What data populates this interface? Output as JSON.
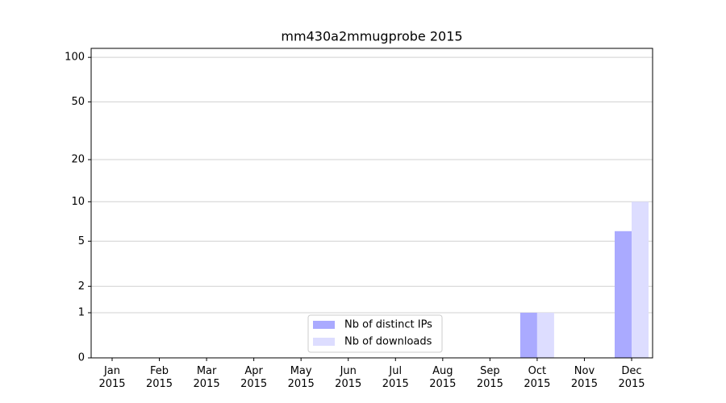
{
  "chart_data": {
    "type": "bar",
    "title": "mm430a2mmugprobe 2015",
    "categories": [
      "Jan 2015",
      "Feb 2015",
      "Mar 2015",
      "Apr 2015",
      "May 2015",
      "Jun 2015",
      "Jul 2015",
      "Aug 2015",
      "Sep 2015",
      "Oct 2015",
      "Nov 2015",
      "Dec 2015"
    ],
    "series": [
      {
        "name": "Nb of distinct IPs",
        "color": "#aaaaff",
        "values": [
          0,
          0,
          0,
          0,
          0,
          0,
          0,
          0,
          0,
          1,
          0,
          6
        ]
      },
      {
        "name": "Nb of downloads",
        "color": "#ddddff",
        "values": [
          0,
          0,
          0,
          0,
          0,
          0,
          0,
          0,
          0,
          1,
          0,
          10
        ]
      }
    ],
    "ylim": [
      0,
      115
    ],
    "yticks": [
      0,
      1,
      2,
      5,
      10,
      20,
      50,
      100
    ],
    "yscale": "symlog",
    "grid": true,
    "legend": "lower center"
  }
}
